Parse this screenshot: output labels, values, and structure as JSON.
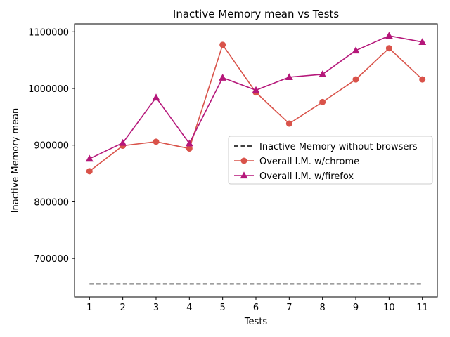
{
  "chart_data": {
    "type": "line",
    "title": "Inactive Memory mean vs Tests",
    "xlabel": "Tests",
    "ylabel": "Inactive Memory mean",
    "x": [
      1,
      2,
      3,
      4,
      5,
      6,
      7,
      8,
      9,
      10,
      11
    ],
    "xlim": [
      0.55,
      11.45
    ],
    "ylim": [
      632000,
      1114000
    ],
    "yticks": [
      700000,
      800000,
      900000,
      1000000,
      1100000
    ],
    "ytick_labels": [
      "700000",
      "800000",
      "900000",
      "1000000",
      "1100000"
    ],
    "xtick_labels": [
      "1",
      "2",
      "3",
      "4",
      "5",
      "6",
      "7",
      "8",
      "9",
      "10",
      "11"
    ],
    "grid": false,
    "legend_position": "center-right",
    "series": [
      {
        "name": "Inactive Memory without browsers",
        "color": "#000000",
        "style": "dashed",
        "marker": "none",
        "values": [
          655000,
          655000,
          655000,
          655000,
          655000,
          655000,
          655000,
          655000,
          655000,
          655000,
          655000
        ]
      },
      {
        "name": "Overall I.M. w/chrome",
        "color": "#d9534a",
        "style": "solid",
        "marker": "circle",
        "values": [
          854000,
          899000,
          906000,
          894000,
          1077000,
          993000,
          938000,
          976000,
          1016000,
          1071000,
          1016000
        ]
      },
      {
        "name": "Overall I.M. w/firefox",
        "color": "#b5177a",
        "style": "solid",
        "marker": "triangle",
        "values": [
          876000,
          904000,
          984000,
          903000,
          1019000,
          997000,
          1020000,
          1025000,
          1067000,
          1093000,
          1082000
        ]
      }
    ]
  }
}
